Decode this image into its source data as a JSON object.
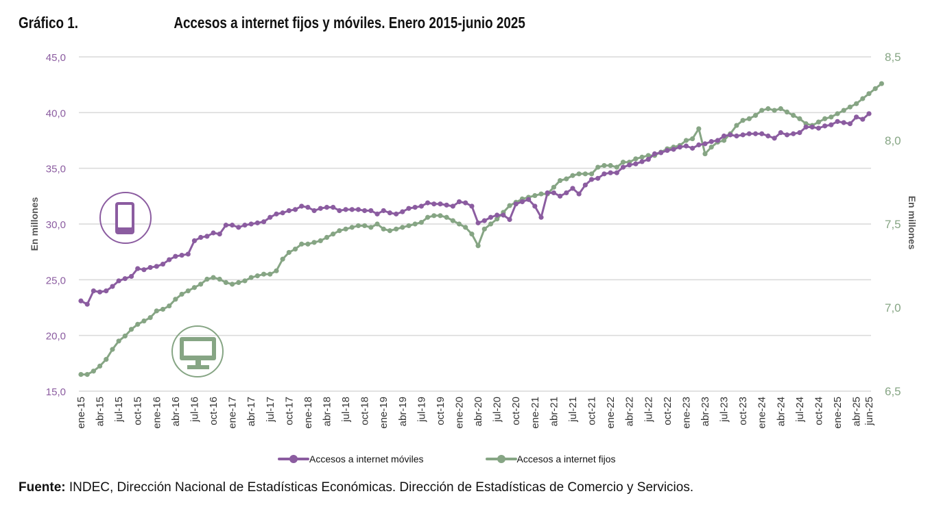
{
  "header": {
    "figure_number": "Gráfico 1.",
    "title": "Accesos a internet fijos y móviles. Enero 2015-junio 2025"
  },
  "footer": {
    "source_label": "Fuente:",
    "source_text": " INDEC, Dirección Nacional de Estadísticas Económicas. Dirección de Estadísticas de Comercio y Servicios."
  },
  "icons": {
    "mobile": "mobile-phone-icon",
    "fixed": "desktop-monitor-icon"
  },
  "chart_data": {
    "type": "line",
    "title": "Accesos a internet fijos y móviles. Enero 2015-junio 2025",
    "xlabel": "",
    "ylabel_left": "En millones",
    "ylabel_right": "En millones",
    "ylim_left": [
      15,
      45
    ],
    "ylim_right": [
      6.5,
      8.5
    ],
    "yticks_left": [
      "15,0",
      "20,0",
      "25,0",
      "30,0",
      "35,0",
      "40,0",
      "45,0"
    ],
    "yticks_right": [
      "6,5",
      "7,0",
      "7,5",
      "8,0",
      "8,5"
    ],
    "grid": true,
    "legend_position": "bottom",
    "x_tick_labels": [
      "ene-15",
      "abr-15",
      "jul-15",
      "oct-15",
      "ene-16",
      "abr-16",
      "jul-16",
      "oct-16",
      "ene-17",
      "abr-17",
      "jul-17",
      "oct-17",
      "ene-18",
      "abr-18",
      "jul-18",
      "oct-18",
      "ene-19",
      "abr-19",
      "jul-19",
      "oct-19",
      "ene-20",
      "abr-20",
      "jul-20",
      "oct-20",
      "ene-21",
      "abr-21",
      "jul-21",
      "oct-21",
      "ene-22",
      "abr-22",
      "jul-22",
      "oct-22",
      "ene-23",
      "abr-23",
      "jul-23",
      "oct-23",
      "ene-24",
      "abr-24",
      "jul-24",
      "oct-24",
      "ene-25",
      "abr-25",
      "jun-25"
    ],
    "x_start": "ene-15",
    "x_end": "jun-25",
    "n_months": 126,
    "colors": {
      "mobile": "#8B5CA0",
      "fixed": "#86A584",
      "grid": "#d9d9d9",
      "left_axis_text": "#8B5CA0",
      "right_axis_text": "#86A584"
    },
    "series": [
      {
        "name": "Accesos a internet móviles",
        "axis": "left",
        "values": [
          23.1,
          22.8,
          24.0,
          23.9,
          24.0,
          24.4,
          24.9,
          25.1,
          25.3,
          26.0,
          25.9,
          26.1,
          26.2,
          26.4,
          26.8,
          27.1,
          27.2,
          27.3,
          28.5,
          28.8,
          28.9,
          29.2,
          29.1,
          29.9,
          29.9,
          29.7,
          29.9,
          30.0,
          30.1,
          30.2,
          30.6,
          30.9,
          31.0,
          31.2,
          31.3,
          31.6,
          31.5,
          31.2,
          31.4,
          31.5,
          31.5,
          31.2,
          31.3,
          31.3,
          31.3,
          31.2,
          31.2,
          30.9,
          31.2,
          31.0,
          30.9,
          31.1,
          31.4,
          31.5,
          31.6,
          31.9,
          31.8,
          31.8,
          31.7,
          31.6,
          32.0,
          31.9,
          31.6,
          30.1,
          30.3,
          30.6,
          30.8,
          30.8,
          30.4,
          31.8,
          32.0,
          32.2,
          31.6,
          30.6,
          32.8,
          32.8,
          32.5,
          32.8,
          33.2,
          32.7,
          33.5,
          34.0,
          34.1,
          34.5,
          34.6,
          34.6,
          35.1,
          35.3,
          35.4,
          35.6,
          35.8,
          36.3,
          36.4,
          36.6,
          36.7,
          36.9,
          37.0,
          36.8,
          37.1,
          37.2,
          37.4,
          37.5,
          37.9,
          38.0,
          37.9,
          38.0,
          38.1,
          38.1,
          38.1,
          37.9,
          37.7,
          38.2,
          38.0,
          38.1,
          38.2,
          38.7,
          38.7,
          38.6,
          38.8,
          38.9,
          39.2,
          39.1,
          39.0,
          39.6,
          39.4,
          39.9
        ]
      },
      {
        "name": "Accesos a internet fijos",
        "axis": "right",
        "values": [
          6.6,
          6.6,
          6.62,
          6.65,
          6.69,
          6.75,
          6.8,
          6.83,
          6.87,
          6.9,
          6.92,
          6.94,
          6.98,
          6.99,
          7.01,
          7.05,
          7.08,
          7.1,
          7.12,
          7.14,
          7.17,
          7.18,
          7.17,
          7.15,
          7.14,
          7.15,
          7.16,
          7.18,
          7.19,
          7.2,
          7.2,
          7.22,
          7.29,
          7.33,
          7.35,
          7.38,
          7.38,
          7.39,
          7.4,
          7.42,
          7.44,
          7.46,
          7.47,
          7.48,
          7.49,
          7.49,
          7.48,
          7.5,
          7.47,
          7.46,
          7.47,
          7.48,
          7.49,
          7.5,
          7.51,
          7.54,
          7.55,
          7.55,
          7.54,
          7.52,
          7.5,
          7.48,
          7.44,
          7.37,
          7.47,
          7.5,
          7.53,
          7.57,
          7.61,
          7.63,
          7.65,
          7.66,
          7.67,
          7.68,
          7.68,
          7.72,
          7.76,
          7.77,
          7.79,
          7.8,
          7.8,
          7.8,
          7.84,
          7.85,
          7.85,
          7.84,
          7.87,
          7.87,
          7.89,
          7.9,
          7.91,
          7.91,
          7.93,
          7.95,
          7.96,
          7.97,
          8.0,
          8.01,
          8.07,
          7.92,
          7.96,
          7.99,
          8.0,
          8.04,
          8.09,
          8.12,
          8.13,
          8.15,
          8.18,
          8.19,
          8.18,
          8.19,
          8.17,
          8.15,
          8.13,
          8.1,
          8.09,
          8.11,
          8.13,
          8.14,
          8.16,
          8.18,
          8.2,
          8.22,
          8.25,
          8.28,
          8.31,
          8.34
        ]
      }
    ]
  }
}
